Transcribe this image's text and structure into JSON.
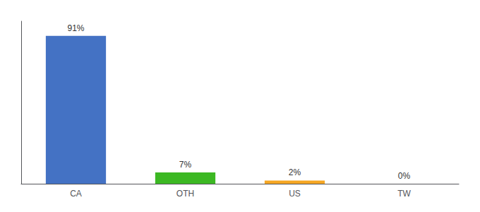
{
  "chart_data": {
    "type": "bar",
    "categories": [
      "CA",
      "OTH",
      "US",
      "TW"
    ],
    "values": [
      91,
      7,
      2,
      0
    ],
    "value_labels": [
      "91%",
      "7%",
      "2%",
      "0%"
    ],
    "colors": [
      "#4472c4",
      "#3cb823",
      "#f5a623",
      "#4472c4"
    ],
    "ylim": [
      0,
      100
    ],
    "data_labels": true,
    "tick_labels": "x",
    "grid": false
  }
}
